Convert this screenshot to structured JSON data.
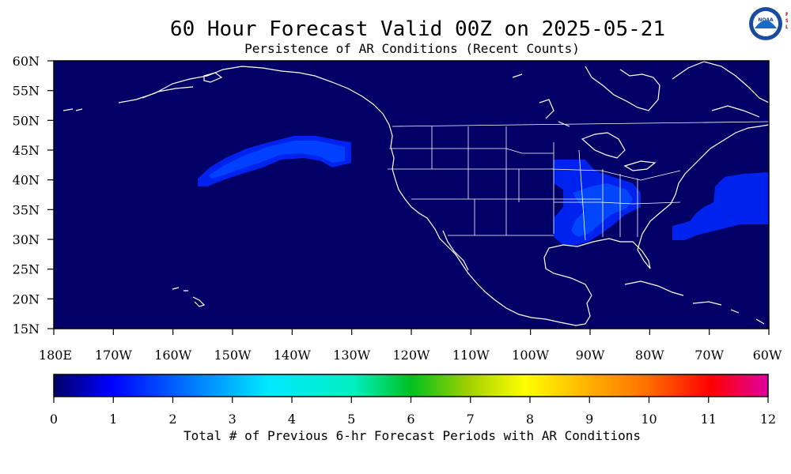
{
  "title": "60 Hour Forecast Valid 00Z on 2025-05-21",
  "subtitle": "Persistence of AR Conditions (Recent Counts)",
  "logo": {
    "text": "NOAA",
    "side_text": "PSL"
  },
  "map": {
    "lat_labels": [
      "60N",
      "55N",
      "50N",
      "45N",
      "40N",
      "35N",
      "30N",
      "25N",
      "20N",
      "15N"
    ],
    "lon_labels": [
      "180E",
      "170W",
      "160W",
      "150W",
      "140W",
      "130W",
      "120W",
      "110W",
      "100W",
      "90W",
      "80W",
      "70W",
      "60W"
    ],
    "background_color": "#000066",
    "coastline_color": "#ffffff"
  },
  "colorbar": {
    "ticks": [
      "0",
      "1",
      "2",
      "3",
      "4",
      "5",
      "6",
      "7",
      "8",
      "9",
      "10",
      "11",
      "12"
    ],
    "label": "Total # of Previous 6-hr Forecast Periods with AR Conditions",
    "colors": [
      "#000066",
      "#0000ff",
      "#0080ff",
      "#00e0ff",
      "#00c060",
      "#80d000",
      "#ffff00",
      "#ffc000",
      "#ff8000",
      "#ff2000",
      "#e00080"
    ]
  }
}
